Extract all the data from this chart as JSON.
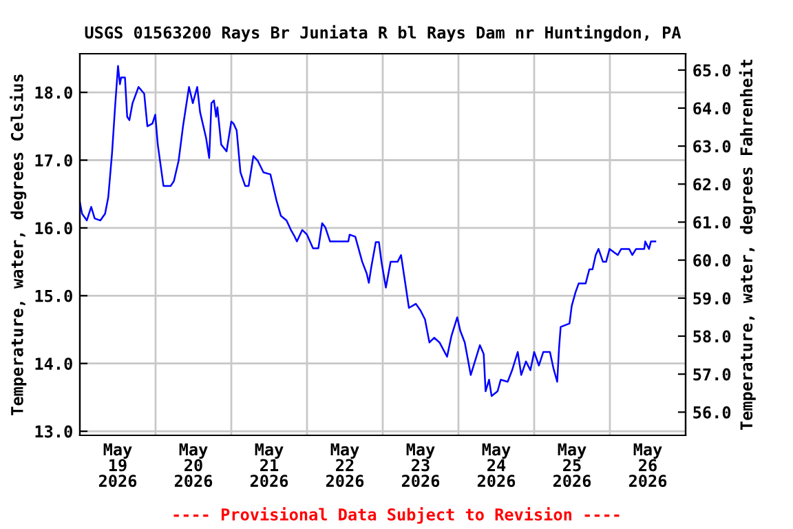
{
  "chart_data": {
    "type": "line",
    "title": "USGS 01563200 Rays Br Juniata R bl Rays Dam nr Huntingdon, PA",
    "ylabel": "Temperature, water, degrees Celsius",
    "y2label": "Temperature, water, degrees Fahrenheit",
    "annotations": [
      "---- Provisional Data Subject to Revision ----"
    ],
    "series": [
      {
        "color": "#0000ff",
        "x": [
          "2026-05-19T00:00",
          "2026-05-19T00:42",
          "2026-05-19T02:12",
          "2026-05-19T03:36",
          "2026-05-19T04:42",
          "2026-05-19T06:30",
          "2026-05-19T08:00",
          "2026-05-19T09:00",
          "2026-05-19T10:12",
          "2026-05-19T11:12",
          "2026-05-19T12:06",
          "2026-05-19T12:42",
          "2026-05-19T13:06",
          "2026-05-19T14:18",
          "2026-05-19T15:00",
          "2026-05-19T15:42",
          "2026-05-19T16:42",
          "2026-05-19T18:36",
          "2026-05-19T20:24",
          "2026-05-19T21:24",
          "2026-05-19T23:00",
          "2026-05-19T23:54",
          "2026-05-20T00:42",
          "2026-05-20T02:30",
          "2026-05-20T04:48",
          "2026-05-20T05:48",
          "2026-05-20T07:18",
          "2026-05-20T08:42",
          "2026-05-20T10:36",
          "2026-05-20T11:48",
          "2026-05-20T13:12",
          "2026-05-20T14:06",
          "2026-05-20T16:00",
          "2026-05-20T17:00",
          "2026-05-20T17:42",
          "2026-05-20T18:30",
          "2026-05-20T19:12",
          "2026-05-20T19:36",
          "2026-05-20T20:48",
          "2026-05-20T22:30",
          "2026-05-21T00:00",
          "2026-05-21T00:42",
          "2026-05-21T01:42",
          "2026-05-21T02:54",
          "2026-05-21T04:24",
          "2026-05-21T05:30",
          "2026-05-21T07:00",
          "2026-05-21T08:24",
          "2026-05-21T10:12",
          "2026-05-21T12:24",
          "2026-05-21T14:18",
          "2026-05-21T15:42",
          "2026-05-21T17:30",
          "2026-05-21T18:54",
          "2026-05-21T20:06",
          "2026-05-21T20:48",
          "2026-05-21T22:30",
          "2026-05-22T00:00",
          "2026-05-22T01:54",
          "2026-05-22T03:36",
          "2026-05-22T04:48",
          "2026-05-22T05:48",
          "2026-05-22T07:18",
          "2026-05-22T13:06",
          "2026-05-22T13:30",
          "2026-05-22T15:18",
          "2026-05-22T17:30",
          "2026-05-22T18:54",
          "2026-05-22T19:36",
          "2026-05-22T20:24",
          "2026-05-22T21:48",
          "2026-05-22T22:48",
          "2026-05-22T23:36",
          "2026-05-23T01:00",
          "2026-05-23T02:30",
          "2026-05-23T04:42",
          "2026-05-23T05:48",
          "2026-05-23T06:48",
          "2026-05-23T08:18",
          "2026-05-23T10:30",
          "2026-05-23T12:00",
          "2026-05-23T13:24",
          "2026-05-23T14:48",
          "2026-05-23T16:18",
          "2026-05-23T18:00",
          "2026-05-23T20:24",
          "2026-05-23T21:48",
          "2026-05-23T23:36",
          "2026-05-24T00:36",
          "2026-05-24T02:00",
          "2026-05-24T03:54",
          "2026-05-24T06:48",
          "2026-05-24T08:00",
          "2026-05-24T08:36",
          "2026-05-24T09:42",
          "2026-05-24T10:30",
          "2026-05-24T12:24",
          "2026-05-24T13:24",
          "2026-05-24T15:36",
          "2026-05-24T17:00",
          "2026-05-24T18:48",
          "2026-05-24T19:54",
          "2026-05-24T21:24",
          "2026-05-24T22:48",
          "2026-05-25T00:00",
          "2026-05-25T01:30",
          "2026-05-25T02:54",
          "2026-05-25T05:00",
          "2026-05-25T06:06",
          "2026-05-25T07:18",
          "2026-05-25T07:54",
          "2026-05-25T08:24",
          "2026-05-25T11:12",
          "2026-05-25T11:54",
          "2026-05-25T13:06",
          "2026-05-25T14:06",
          "2026-05-25T16:18",
          "2026-05-25T17:30",
          "2026-05-25T18:30",
          "2026-05-25T19:30",
          "2026-05-25T20:24",
          "2026-05-25T21:48",
          "2026-05-25T22:48",
          "2026-05-25T23:54",
          "2026-05-26T02:30",
          "2026-05-26T03:36",
          "2026-05-26T06:06",
          "2026-05-26T07:06",
          "2026-05-26T08:18",
          "2026-05-26T10:54",
          "2026-05-26T11:12",
          "2026-05-26T12:24",
          "2026-05-26T13:00",
          "2026-05-26T14:24"
        ],
        "values": [
          16.38,
          16.21,
          16.11,
          16.31,
          16.14,
          16.11,
          16.21,
          16.45,
          17.1,
          17.81,
          18.39,
          18.12,
          18.22,
          18.22,
          17.64,
          17.59,
          17.84,
          18.08,
          17.98,
          17.5,
          17.54,
          17.67,
          17.23,
          16.62,
          16.62,
          16.69,
          16.99,
          17.5,
          18.08,
          17.84,
          18.08,
          17.71,
          17.33,
          17.03,
          17.84,
          17.88,
          17.64,
          17.78,
          17.23,
          17.13,
          17.57,
          17.54,
          17.44,
          16.82,
          16.62,
          16.62,
          17.06,
          16.99,
          16.82,
          16.79,
          16.41,
          16.18,
          16.11,
          15.97,
          15.87,
          15.8,
          15.97,
          15.9,
          15.7,
          15.7,
          16.07,
          16.01,
          15.8,
          15.8,
          15.9,
          15.87,
          15.5,
          15.33,
          15.19,
          15.43,
          15.79,
          15.79,
          15.5,
          15.12,
          15.5,
          15.5,
          15.6,
          15.29,
          14.82,
          14.88,
          14.78,
          14.65,
          14.31,
          14.38,
          14.31,
          14.1,
          14.41,
          14.68,
          14.48,
          14.31,
          13.83,
          14.27,
          14.14,
          13.59,
          13.76,
          13.52,
          13.59,
          13.76,
          13.73,
          13.9,
          14.17,
          13.83,
          14.03,
          13.9,
          14.17,
          13.97,
          14.17,
          14.17,
          13.93,
          13.73,
          14.24,
          14.54,
          14.59,
          14.85,
          15.05,
          15.18,
          15.18,
          15.39,
          15.39,
          15.6,
          15.69,
          15.5,
          15.5,
          15.69,
          15.6,
          15.69,
          15.69,
          15.6,
          15.69,
          15.69,
          15.8,
          15.69,
          15.8,
          15.8
        ]
      }
    ],
    "xlim": [
      "2026-05-19T00:00",
      "2026-05-27T00:00"
    ],
    "xticks": [
      {
        "value": "2026-05-20T00:00",
        "label": null
      },
      {
        "value": "2026-05-21T00:00",
        "label": null
      },
      {
        "value": "2026-05-22T00:00",
        "label": null
      },
      {
        "value": "2026-05-23T00:00",
        "label": null
      },
      {
        "value": "2026-05-24T00:00",
        "label": null
      },
      {
        "value": "2026-05-25T00:00",
        "label": null
      },
      {
        "value": "2026-05-26T00:00",
        "label": null
      },
      {
        "value": "2026-05-19T12:00",
        "label": "May\n19\n2026"
      },
      {
        "value": "2026-05-20T12:00",
        "label": "May\n20\n2026"
      },
      {
        "value": "2026-05-21T12:00",
        "label": "May\n21\n2026"
      },
      {
        "value": "2026-05-22T12:00",
        "label": "May\n22\n2026"
      },
      {
        "value": "2026-05-23T12:00",
        "label": "May\n23\n2026"
      },
      {
        "value": "2026-05-24T12:00",
        "label": "May\n24\n2026"
      },
      {
        "value": "2026-05-25T12:00",
        "label": "May\n25\n2026"
      },
      {
        "value": "2026-05-26T12:00",
        "label": "May\n26\n2026"
      }
    ],
    "ylim": [
      12.94,
      18.57
    ],
    "yticks": [
      {
        "value": 13,
        "label": "13.0"
      },
      {
        "value": 14,
        "label": "14.0"
      },
      {
        "value": 15,
        "label": "15.0"
      },
      {
        "value": 16,
        "label": "16.0"
      },
      {
        "value": 17,
        "label": "17.0"
      },
      {
        "value": 18,
        "label": "18.0"
      }
    ],
    "y2lim": [
      55.39,
      65.43
    ],
    "y2ticks": [
      {
        "value": 56,
        "label": "56.0"
      },
      {
        "value": 57,
        "label": "57.0"
      },
      {
        "value": 58,
        "label": "58.0"
      },
      {
        "value": 59,
        "label": "59.0"
      },
      {
        "value": 60,
        "label": "60.0"
      },
      {
        "value": 61,
        "label": "61.0"
      },
      {
        "value": 62,
        "label": "62.0"
      },
      {
        "value": 63,
        "label": "63.0"
      },
      {
        "value": 64,
        "label": "64.0"
      },
      {
        "value": 65,
        "label": "65.0"
      }
    ],
    "grid": true,
    "legend": false,
    "line_style": "solid"
  }
}
